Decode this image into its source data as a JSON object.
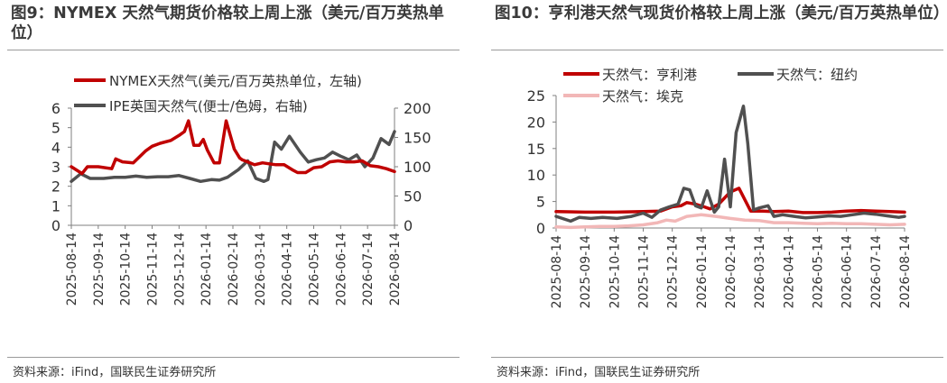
{
  "colors": {
    "red": "#c00000",
    "dark_gray": "#505050",
    "light_pink": "#f2b7b7",
    "axis": "#7f7f7f",
    "text": "#333333"
  },
  "panels": [
    {
      "title": "图9：NYMEX 天然气期货价格较上周上涨（美元/百万英热单位）",
      "source": "资料来源：iFind，国联民生证券研究所"
    },
    {
      "title": "图10：亨利港天然气现货价格较上周上涨（美元/百万英热单位）",
      "source": "资料来源：iFind，国联民生证券研究所"
    }
  ],
  "chart_data": [
    {
      "type": "line",
      "legend": [
        "NYMEX天然气(美元/百万英热单位，左轴)",
        "IPE英国天然气(便士/色姆，右轴)"
      ],
      "legend_placement": "top",
      "grid": false,
      "x_ticks": [
        "2025-08-14",
        "2025-09-14",
        "2025-10-14",
        "2025-11-14",
        "2025-12-14",
        "2026-01-14",
        "2026-02-14",
        "2026-03-14",
        "2026-04-14",
        "2026-05-14",
        "2026-06-14",
        "2026-07-14",
        "2026-08-14"
      ],
      "y_left": {
        "ylim": [
          0,
          6
        ],
        "ticks": [
          0,
          1,
          2,
          3,
          4,
          5,
          6
        ]
      },
      "y_right": {
        "ylim": [
          0,
          200
        ],
        "ticks": [
          0,
          50,
          100,
          150,
          200
        ]
      },
      "series": [
        {
          "name": "NYMEX天然气(美元/百万英热单位，左轴)",
          "axis": "left",
          "color": "red",
          "x": [
            0,
            0.4,
            0.6,
            1,
            1.5,
            1.65,
            1.9,
            2.3,
            2.75,
            3,
            3.3,
            3.7,
            4,
            4.2,
            4.35,
            4.55,
            4.75,
            4.9,
            5.05,
            5.3,
            5.5,
            5.75,
            6.05,
            6.25,
            6.35,
            6.55,
            6.8,
            7.1,
            7.35,
            7.6,
            7.9,
            8.2,
            8.4,
            8.7,
            9,
            9.3,
            9.6,
            9.9,
            10.2,
            10.5,
            10.8,
            11.1,
            11.4,
            11.7,
            12
          ],
          "values": [
            3.0,
            2.65,
            3.0,
            3.0,
            2.9,
            3.4,
            3.25,
            3.2,
            3.8,
            4.05,
            4.2,
            4.35,
            4.6,
            4.8,
            5.35,
            4.1,
            4.1,
            4.4,
            3.85,
            3.2,
            3.2,
            5.35,
            3.9,
            3.45,
            3.35,
            3.25,
            3.1,
            3.2,
            3.15,
            3.1,
            3.1,
            2.85,
            2.7,
            2.7,
            2.95,
            3.0,
            3.25,
            3.3,
            3.25,
            3.25,
            3.3,
            3.05,
            3.0,
            2.9,
            2.75
          ]
        },
        {
          "name": "IPE英国天然气(便士/色姆，右轴)",
          "axis": "right",
          "color": "dark_gray",
          "x": [
            0,
            0.35,
            0.7,
            1.2,
            1.6,
            2,
            2.4,
            2.8,
            3.2,
            3.6,
            4,
            4.4,
            4.8,
            5.2,
            5.5,
            5.8,
            6.2,
            6.55,
            6.85,
            7.15,
            7.3,
            7.55,
            7.8,
            8.1,
            8.5,
            8.8,
            9.1,
            9.4,
            9.7,
            10,
            10.3,
            10.6,
            10.9,
            11.2,
            11.5,
            11.8,
            12
          ],
          "values": [
            75,
            88,
            80,
            80,
            82,
            82,
            84,
            82,
            83,
            83,
            85,
            80,
            75,
            78,
            77,
            82,
            95,
            110,
            80,
            75,
            78,
            142,
            130,
            152,
            125,
            108,
            112,
            115,
            125,
            118,
            112,
            120,
            100,
            115,
            148,
            138,
            160
          ]
        }
      ]
    },
    {
      "type": "line",
      "legend": [
        "天然气：亨利港",
        "天然气：纽约",
        "天然气：埃克"
      ],
      "legend_placement": "top",
      "grid": false,
      "x_ticks": [
        "2025-08-14",
        "2025-09-14",
        "2025-10-14",
        "2025-11-14",
        "2025-12-14",
        "2026-01-14",
        "2026-02-14",
        "2026-03-14",
        "2026-04-14",
        "2026-05-14",
        "2026-06-14",
        "2026-07-14",
        "2026-08-14"
      ],
      "y": {
        "ylim": [
          0,
          25
        ],
        "ticks": [
          0,
          5,
          10,
          15,
          20,
          25
        ]
      },
      "series": [
        {
          "name": "天然气：亨利港",
          "color": "red",
          "x": [
            0,
            1,
            2,
            3,
            3.6,
            4,
            4.3,
            4.5,
            4.8,
            5.1,
            5.3,
            5.6,
            6,
            6.3,
            6.7,
            7.1,
            7.5,
            8,
            8.5,
            9,
            9.5,
            10,
            10.5,
            11,
            11.5,
            12
          ],
          "values": [
            3.1,
            3.0,
            3.0,
            3.1,
            3.2,
            4.0,
            4.2,
            4.8,
            4.5,
            4.0,
            3.6,
            4.5,
            6.8,
            7.5,
            3.2,
            3.2,
            3.1,
            3.2,
            2.9,
            2.9,
            3.0,
            3.2,
            3.3,
            3.2,
            3.1,
            3.0
          ]
        },
        {
          "name": "天然气：纽约",
          "color": "dark_gray",
          "x": [
            0,
            0.5,
            0.8,
            1.2,
            1.6,
            2.1,
            2.6,
            3,
            3.3,
            3.6,
            3.9,
            4.2,
            4.4,
            4.6,
            4.8,
            5.0,
            5.2,
            5.45,
            5.6,
            5.8,
            6.0,
            6.2,
            6.45,
            6.6,
            6.8,
            7.0,
            7.3,
            7.5,
            7.8,
            8.2,
            8.6,
            9,
            9.4,
            9.8,
            10.2,
            10.6,
            11,
            11.4,
            11.8,
            12
          ],
          "values": [
            2.2,
            1.3,
            2.0,
            1.8,
            2.0,
            1.8,
            2.2,
            2.8,
            2.0,
            3.4,
            4.0,
            4.5,
            7.5,
            7.2,
            4.2,
            3.8,
            7.0,
            3.0,
            4.0,
            13.0,
            4.0,
            18.0,
            23.0,
            16.0,
            3.4,
            3.8,
            4.2,
            2.2,
            2.5,
            2.2,
            1.9,
            2.1,
            2.3,
            2.2,
            2.5,
            2.8,
            2.6,
            2.3,
            2.0,
            2.2
          ]
        },
        {
          "name": "天然气：埃克",
          "color": "light_pink",
          "x": [
            0,
            0.5,
            1,
            1.5,
            2,
            2.5,
            3,
            3.5,
            3.8,
            4.1,
            4.5,
            5,
            5.5,
            6,
            6.5,
            7,
            7.5,
            8,
            8.5,
            9,
            9.5,
            10,
            10.5,
            11,
            11.5,
            12
          ],
          "values": [
            0.2,
            0.1,
            0.2,
            0.3,
            0.3,
            0.4,
            0.6,
            1.0,
            1.5,
            1.3,
            2.2,
            2.5,
            2.2,
            1.8,
            1.5,
            1.4,
            1.0,
            1.0,
            0.9,
            0.8,
            0.9,
            0.8,
            0.8,
            0.7,
            0.6,
            0.7
          ]
        }
      ]
    }
  ]
}
